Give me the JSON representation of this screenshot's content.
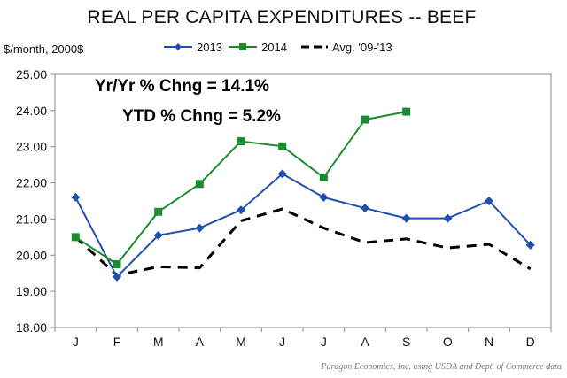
{
  "chart_data": {
    "type": "line",
    "title": "REAL PER CAPITA EXPENDITURES -- BEEF",
    "ylabel": "$/month, 2000$",
    "xlabel": "",
    "categories": [
      "J",
      "F",
      "M",
      "A",
      "M",
      "J",
      "J",
      "A",
      "S",
      "O",
      "N",
      "D"
    ],
    "ylim": [
      18,
      25
    ],
    "yticks": [
      "18.00",
      "19.00",
      "20.00",
      "21.00",
      "22.00",
      "23.00",
      "24.00",
      "25.00"
    ],
    "grid": false,
    "legend_position": "top-right",
    "series": [
      {
        "name": "2013",
        "color": "#1f4fb0",
        "marker": "diamond",
        "line_style": "solid",
        "values": [
          21.6,
          19.4,
          20.55,
          20.75,
          21.25,
          22.25,
          21.6,
          21.3,
          21.02,
          21.02,
          21.5,
          20.28
        ]
      },
      {
        "name": "2014",
        "color": "#1b8c2e",
        "marker": "square",
        "line_style": "solid",
        "values": [
          20.5,
          19.75,
          21.2,
          21.97,
          23.15,
          23.01,
          22.15,
          23.75,
          23.97,
          null,
          null,
          null
        ]
      },
      {
        "name": "Avg. '09-'13",
        "color": "#000000",
        "marker": "none",
        "line_style": "dashed",
        "values": [
          20.5,
          19.45,
          19.68,
          19.65,
          20.95,
          21.28,
          20.75,
          20.35,
          20.45,
          20.2,
          20.3,
          19.62
        ]
      }
    ],
    "annotations": [
      "Yr/Yr % Chng = 14.1%",
      "YTD % Chng = 5.2%"
    ],
    "source": "Paragon Economics, Inc. using USDA and Dept. of Commerce data"
  }
}
